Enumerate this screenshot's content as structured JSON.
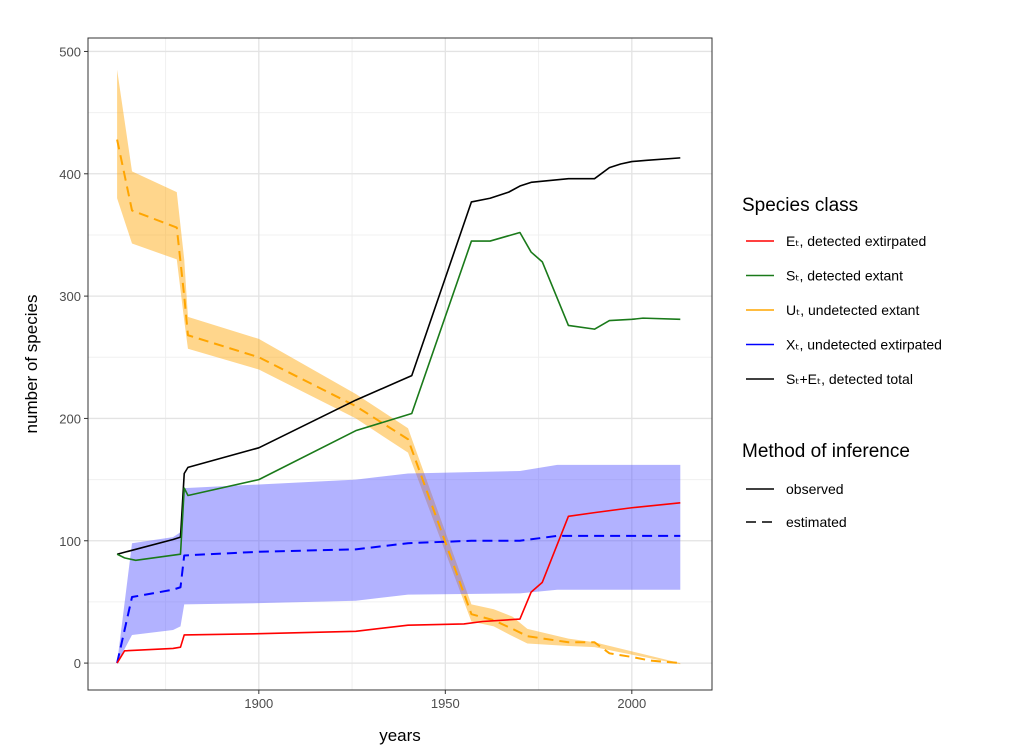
{
  "chart_data": {
    "type": "line",
    "xlabel": "years",
    "ylabel": "number of species",
    "xlim": [
      1854.2,
      2021.5
    ],
    "ylim": [
      -22,
      511
    ],
    "xticks": [
      1900,
      1950,
      2000
    ],
    "yticks": [
      0,
      100,
      200,
      300,
      400,
      500
    ],
    "grid": true,
    "legend_position": "right",
    "legend": {
      "title1": "Species class",
      "items": [
        {
          "label": "Eₜ, detected extirpated",
          "color": "#ff0000"
        },
        {
          "label": "Sₜ, detected extant",
          "color": "#1a7a1a"
        },
        {
          "label": "Uₜ, undetected extant",
          "color": "#ffa500"
        },
        {
          "label": "Xₜ, undetected extirpated",
          "color": "#0000ff"
        },
        {
          "label": "Sₜ+Eₜ, detected total",
          "color": "#000000"
        }
      ],
      "title2": "Method of inference",
      "methods": [
        {
          "label": "observed",
          "dash": false
        },
        {
          "label": "estimated",
          "dash": true
        }
      ]
    },
    "series": [
      {
        "name": "E",
        "color": "#ff0000",
        "dash": false,
        "points": [
          [
            1862,
            0
          ],
          [
            1864,
            10
          ],
          [
            1877,
            12
          ],
          [
            1879,
            13
          ],
          [
            1880,
            23
          ],
          [
            1900,
            24
          ],
          [
            1926,
            26
          ],
          [
            1940,
            31
          ],
          [
            1955,
            32
          ],
          [
            1960,
            34
          ],
          [
            1970,
            36
          ],
          [
            1973,
            58
          ],
          [
            1976,
            66
          ],
          [
            1983,
            120
          ],
          [
            1990,
            123
          ],
          [
            2000,
            127
          ],
          [
            2013,
            131
          ]
        ]
      },
      {
        "name": "S",
        "color": "#1a7a1a",
        "dash": false,
        "points": [
          [
            1862,
            89
          ],
          [
            1864,
            86
          ],
          [
            1867,
            84
          ],
          [
            1879,
            89
          ],
          [
            1880,
            143
          ],
          [
            1881,
            137
          ],
          [
            1900,
            150
          ],
          [
            1926,
            190
          ],
          [
            1941,
            204
          ],
          [
            1957,
            345
          ],
          [
            1962,
            345
          ],
          [
            1970,
            352
          ],
          [
            1973,
            336
          ],
          [
            1976,
            328
          ],
          [
            1983,
            276
          ],
          [
            1990,
            273
          ],
          [
            1994,
            280
          ],
          [
            2000,
            281
          ],
          [
            2003,
            282
          ],
          [
            2013,
            281
          ]
        ]
      },
      {
        "name": "U",
        "color": "#ffa500",
        "dash": true,
        "points": [
          [
            1862,
            428
          ],
          [
            1866,
            370
          ],
          [
            1878,
            356
          ],
          [
            1880,
            300
          ],
          [
            1881,
            268
          ],
          [
            1900,
            250
          ],
          [
            1926,
            210
          ],
          [
            1940,
            183
          ],
          [
            1957,
            40
          ],
          [
            1963,
            35
          ],
          [
            1968,
            28
          ],
          [
            1972,
            22
          ],
          [
            1983,
            17
          ],
          [
            1990,
            17
          ],
          [
            1994,
            8
          ],
          [
            2000,
            5
          ],
          [
            2005,
            2
          ],
          [
            2013,
            0
          ]
        ],
        "band": {
          "color": "#ffa500",
          "high": [
            [
              1862,
              485
            ],
            [
              1866,
              402
            ],
            [
              1878,
              385
            ],
            [
              1880,
              330
            ],
            [
              1881,
              283
            ],
            [
              1900,
              265
            ],
            [
              1926,
              220
            ],
            [
              1940,
              192
            ],
            [
              1957,
              48
            ],
            [
              1963,
              44
            ],
            [
              1968,
              38
            ],
            [
              1972,
              28
            ],
            [
              1983,
              20
            ],
            [
              1990,
              17
            ],
            [
              2013,
              0
            ]
          ],
          "low": [
            [
              1862,
              380
            ],
            [
              1866,
              343
            ],
            [
              1878,
              330
            ],
            [
              1880,
              280
            ],
            [
              1881,
              257
            ],
            [
              1900,
              240
            ],
            [
              1926,
              200
            ],
            [
              1940,
              172
            ],
            [
              1957,
              34
            ],
            [
              1963,
              30
            ],
            [
              1968,
              22
            ],
            [
              1972,
              16
            ],
            [
              1983,
              14
            ],
            [
              1990,
              13
            ],
            [
              2013,
              -1
            ]
          ]
        }
      },
      {
        "name": "X",
        "color": "#0000ff",
        "dash": true,
        "points": [
          [
            1862,
            0
          ],
          [
            1866,
            54
          ],
          [
            1877,
            60
          ],
          [
            1879,
            62
          ],
          [
            1880,
            88
          ],
          [
            1900,
            91
          ],
          [
            1926,
            93
          ],
          [
            1940,
            98
          ],
          [
            1957,
            100
          ],
          [
            1970,
            100
          ],
          [
            1975,
            102
          ],
          [
            1980,
            104
          ],
          [
            2013,
            104
          ]
        ],
        "band": {
          "color": "#5555ff",
          "high": [
            [
              1862,
              0
            ],
            [
              1866,
              98
            ],
            [
              1877,
              103
            ],
            [
              1879,
              107
            ],
            [
              1880,
              143
            ],
            [
              1900,
              146
            ],
            [
              1926,
              150
            ],
            [
              1940,
              155
            ],
            [
              1970,
              157
            ],
            [
              1980,
              162
            ],
            [
              2013,
              162
            ]
          ],
          "low": [
            [
              1862,
              0
            ],
            [
              1866,
              23
            ],
            [
              1877,
              27
            ],
            [
              1879,
              30
            ],
            [
              1880,
              48
            ],
            [
              1900,
              49
            ],
            [
              1926,
              51
            ],
            [
              1940,
              56
            ],
            [
              1970,
              57
            ],
            [
              1980,
              60
            ],
            [
              2013,
              60
            ]
          ]
        }
      },
      {
        "name": "S+E",
        "color": "#000000",
        "dash": false,
        "points": [
          [
            1862,
            89
          ],
          [
            1877,
            101
          ],
          [
            1879,
            103
          ],
          [
            1880,
            155
          ],
          [
            1881,
            160
          ],
          [
            1900,
            176
          ],
          [
            1926,
            215
          ],
          [
            1941,
            235
          ],
          [
            1957,
            377
          ],
          [
            1962,
            380
          ],
          [
            1967,
            385
          ],
          [
            1970,
            390
          ],
          [
            1973,
            393
          ],
          [
            1983,
            396
          ],
          [
            1990,
            396
          ],
          [
            1994,
            405
          ],
          [
            1997,
            408
          ],
          [
            2000,
            410
          ],
          [
            2004,
            411
          ],
          [
            2013,
            413
          ]
        ]
      }
    ]
  }
}
